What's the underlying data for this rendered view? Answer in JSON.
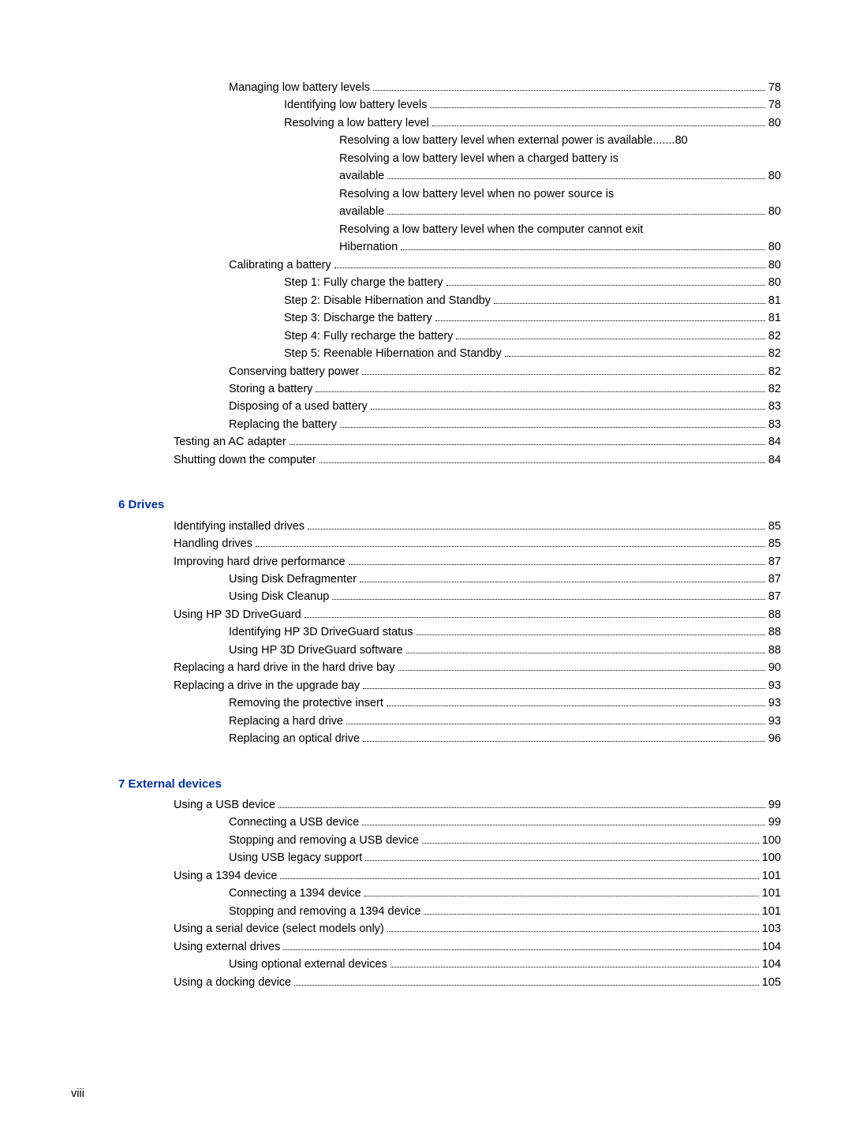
{
  "colors": {
    "text": "#000000",
    "heading": "#003399",
    "background": "#ffffff"
  },
  "typography": {
    "base_font_size_pt": 11,
    "heading_font_size_pt": 11,
    "heading_weight": "bold",
    "font_family": "Arial"
  },
  "footer": {
    "page_label": "viii"
  },
  "sections": [
    {
      "heading": null,
      "entries": [
        {
          "indent": 2,
          "title": "Managing low battery levels",
          "page": "78"
        },
        {
          "indent": 3,
          "title": "Identifying low battery levels",
          "page": "78"
        },
        {
          "indent": 3,
          "title": "Resolving a low battery level",
          "page": "80"
        },
        {
          "indent": 4,
          "title": "Resolving a low battery level when external power is available",
          "page": "80",
          "no_dots": true
        },
        {
          "indent": 4,
          "title": "Resolving a low battery level when a charged battery is",
          "cont": true
        },
        {
          "indent": 4,
          "title": "available",
          "page": "80",
          "cont_end": true
        },
        {
          "indent": 4,
          "title": "Resolving a low battery level when no power source is",
          "cont": true
        },
        {
          "indent": 4,
          "title": "available",
          "page": "80",
          "cont_end": true
        },
        {
          "indent": 4,
          "title": "Resolving a low battery level when the computer cannot exit",
          "cont": true
        },
        {
          "indent": 4,
          "title": "Hibernation",
          "page": "80",
          "cont_end": true
        },
        {
          "indent": 2,
          "title": "Calibrating a battery",
          "page": "80"
        },
        {
          "indent": 3,
          "title": "Step 1: Fully charge the battery",
          "page": "80"
        },
        {
          "indent": 3,
          "title": "Step 2: Disable Hibernation and Standby",
          "page": "81"
        },
        {
          "indent": 3,
          "title": "Step 3: Discharge the battery",
          "page": "81"
        },
        {
          "indent": 3,
          "title": "Step 4: Fully recharge the battery",
          "page": "82"
        },
        {
          "indent": 3,
          "title": "Step 5: Reenable Hibernation and Standby",
          "page": "82"
        },
        {
          "indent": 2,
          "title": "Conserving battery power",
          "page": "82"
        },
        {
          "indent": 2,
          "title": "Storing a battery",
          "page": "82"
        },
        {
          "indent": 2,
          "title": "Disposing of a used battery",
          "page": "83"
        },
        {
          "indent": 2,
          "title": "Replacing the battery",
          "page": "83"
        },
        {
          "indent": 1,
          "title": "Testing an AC adapter",
          "page": "84"
        },
        {
          "indent": 1,
          "title": "Shutting down the computer",
          "page": "84"
        }
      ]
    },
    {
      "heading": "6  Drives",
      "entries": [
        {
          "indent": 1,
          "title": "Identifying installed drives",
          "page": "85"
        },
        {
          "indent": 1,
          "title": "Handling drives",
          "page": "85"
        },
        {
          "indent": 1,
          "title": "Improving hard drive performance",
          "page": "87"
        },
        {
          "indent": 2,
          "title": "Using Disk Defragmenter",
          "page": "87"
        },
        {
          "indent": 2,
          "title": "Using Disk Cleanup",
          "page": "87"
        },
        {
          "indent": 1,
          "title": "Using HP 3D DriveGuard",
          "page": "88"
        },
        {
          "indent": 2,
          "title": "Identifying HP 3D DriveGuard status",
          "page": "88"
        },
        {
          "indent": 2,
          "title": "Using HP 3D DriveGuard software",
          "page": "88"
        },
        {
          "indent": 1,
          "title": "Replacing a hard drive in the hard drive bay",
          "page": "90"
        },
        {
          "indent": 1,
          "title": "Replacing a drive in the upgrade bay",
          "page": "93"
        },
        {
          "indent": 2,
          "title": "Removing the protective insert",
          "page": "93"
        },
        {
          "indent": 2,
          "title": "Replacing a hard drive",
          "page": "93"
        },
        {
          "indent": 2,
          "title": "Replacing an optical drive",
          "page": "96"
        }
      ]
    },
    {
      "heading": "7  External devices",
      "entries": [
        {
          "indent": 1,
          "title": "Using a USB device",
          "page": "99"
        },
        {
          "indent": 2,
          "title": "Connecting a USB device",
          "page": "99"
        },
        {
          "indent": 2,
          "title": "Stopping and removing a USB device",
          "page": "100"
        },
        {
          "indent": 2,
          "title": "Using USB legacy support",
          "page": "100"
        },
        {
          "indent": 1,
          "title": "Using a 1394 device",
          "page": "101"
        },
        {
          "indent": 2,
          "title": "Connecting a 1394 device",
          "page": "101"
        },
        {
          "indent": 2,
          "title": "Stopping and removing a 1394 device",
          "page": "101"
        },
        {
          "indent": 1,
          "title": "Using a serial device (select models only)",
          "page": "103"
        },
        {
          "indent": 1,
          "title": "Using external drives",
          "page": "104"
        },
        {
          "indent": 2,
          "title": "Using optional external devices",
          "page": "104"
        },
        {
          "indent": 1,
          "title": "Using a docking device",
          "page": "105"
        }
      ]
    }
  ]
}
